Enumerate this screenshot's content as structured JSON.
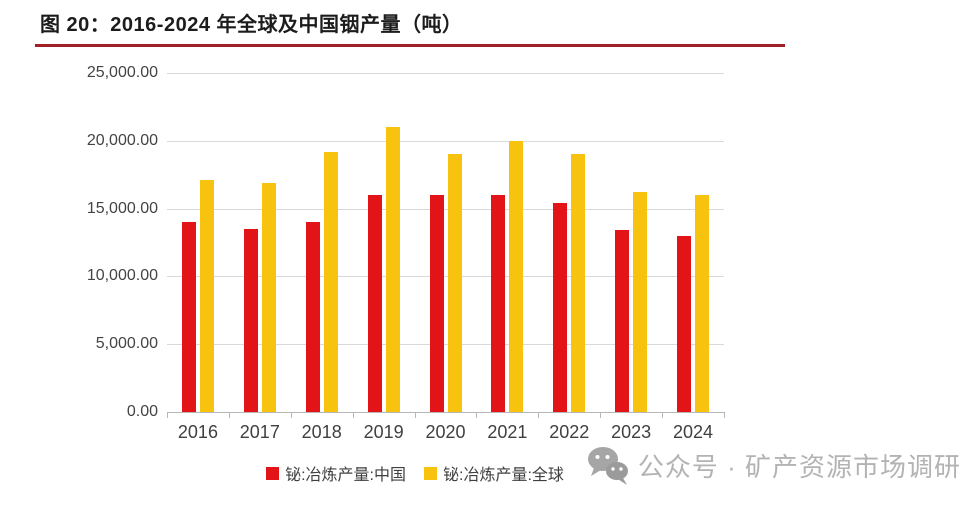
{
  "figure": {
    "title": "图 20：2016-2024 年全球及中国铟产量（吨）",
    "accent_rule_color": "#A02025"
  },
  "chart_data": {
    "type": "bar",
    "title": "图 20：2016-2024 年全球及中国铟产量（吨）",
    "categories": [
      "2016",
      "2017",
      "2018",
      "2019",
      "2020",
      "2021",
      "2022",
      "2023",
      "2024"
    ],
    "series": [
      {
        "key": "china",
        "name": "铋:冶炼产量:中国",
        "color": "#E21418",
        "values": [
          14000,
          13500,
          14000,
          16000,
          16000,
          16000,
          15400,
          13400,
          13000
        ]
      },
      {
        "key": "global",
        "name": "铋:冶炼产量:全球",
        "color": "#F7C30E",
        "values": [
          17100,
          16900,
          19200,
          21000,
          19000,
          20000,
          19000,
          16200,
          16000
        ]
      }
    ],
    "xlabel": "",
    "ylabel": "",
    "ylim": [
      0,
      25000
    ],
    "ytick_step": 5000,
    "ytick_labels": [
      "0.00",
      "5,000.00",
      "10,000.00",
      "15,000.00",
      "20,000.00",
      "25,000.00"
    ],
    "grid": true,
    "legend_position": "bottom"
  },
  "watermark": {
    "icon": "wechat-icon",
    "text": "公众号 · 矿产资源市场调研"
  }
}
